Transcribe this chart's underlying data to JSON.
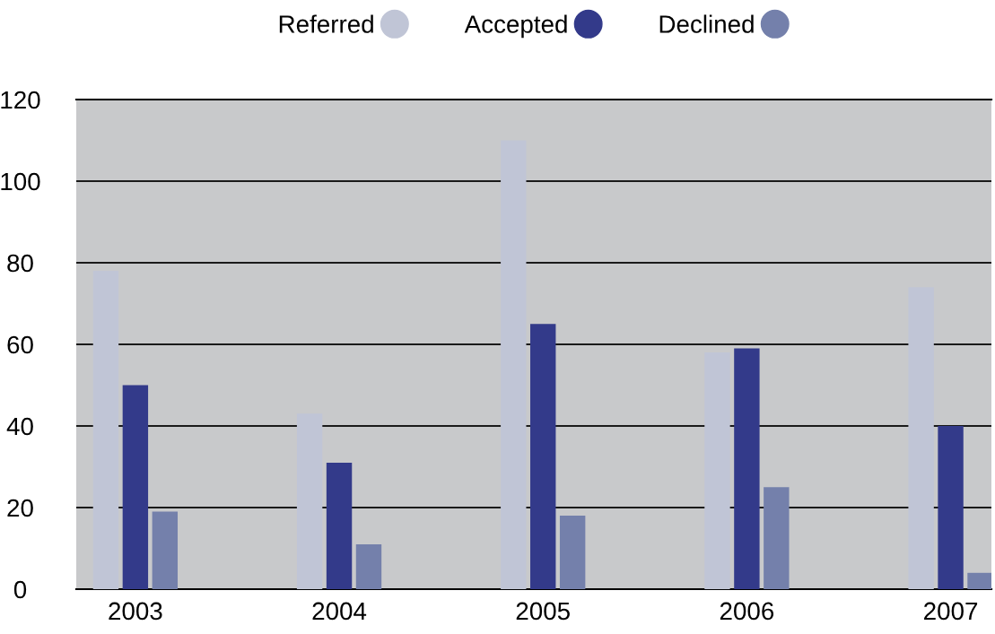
{
  "chart_data": {
    "type": "bar",
    "categories": [
      "2003",
      "2004",
      "2005",
      "2006",
      "2007"
    ],
    "series": [
      {
        "name": "Referred",
        "color": "#c0c5d6",
        "values": [
          78,
          43,
          110,
          58,
          74
        ]
      },
      {
        "name": "Accepted",
        "color": "#333a8a",
        "values": [
          50,
          31,
          65,
          59,
          40
        ]
      },
      {
        "name": "Declined",
        "color": "#7480ab",
        "values": [
          19,
          11,
          18,
          25,
          4
        ]
      }
    ],
    "ylim": [
      0,
      120
    ],
    "yticks": [
      0,
      20,
      40,
      60,
      80,
      100,
      120
    ],
    "grid": "y",
    "legend": "top",
    "marker": "circle"
  }
}
